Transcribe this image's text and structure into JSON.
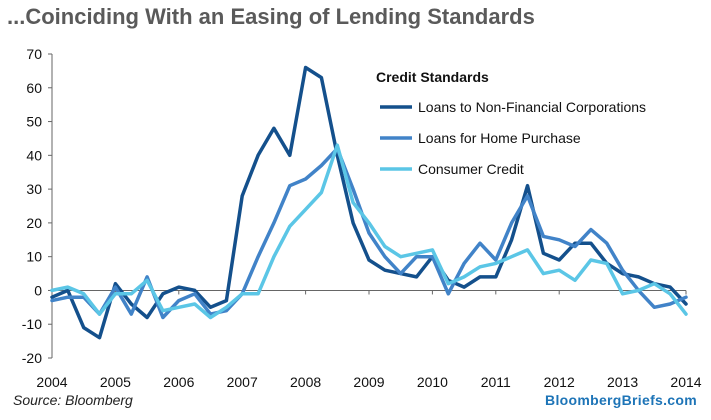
{
  "title": "...Coinciding With an Easing of Lending Standards",
  "source": "Source: Bloomberg",
  "brand": "BloombergBriefs.com",
  "chart_data": {
    "type": "line",
    "title": "...Coinciding With an Easing of Lending Standards",
    "legend_title": "Credit Standards",
    "legend_position": "top-right",
    "grid": false,
    "xlim": [
      2004,
      2014
    ],
    "ylim": [
      -20,
      70
    ],
    "x_ticks": [
      2004,
      2005,
      2006,
      2007,
      2008,
      2009,
      2010,
      2011,
      2012,
      2013,
      2014
    ],
    "y_ticks": [
      -20,
      -10,
      0,
      10,
      20,
      30,
      40,
      50,
      60,
      70
    ],
    "x": [
      2004.0,
      2004.25,
      2004.5,
      2004.75,
      2005.0,
      2005.25,
      2005.5,
      2005.75,
      2006.0,
      2006.25,
      2006.5,
      2006.75,
      2007.0,
      2007.25,
      2007.5,
      2007.75,
      2008.0,
      2008.25,
      2008.5,
      2008.75,
      2009.0,
      2009.25,
      2009.5,
      2009.75,
      2010.0,
      2010.25,
      2010.5,
      2010.75,
      2011.0,
      2011.25,
      2011.5,
      2011.75,
      2012.0,
      2012.25,
      2012.5,
      2012.75,
      2013.0,
      2013.25,
      2013.5,
      2013.75,
      2014.0
    ],
    "series": [
      {
        "name": "Loans to Non-Financial Corporations",
        "color": "#14508c",
        "values": [
          -2,
          0,
          -11,
          -14,
          2,
          -4,
          -8,
          -1,
          1,
          0,
          -5,
          -3,
          28,
          40,
          48,
          40,
          66,
          63,
          40,
          20,
          9,
          6,
          5,
          4,
          10,
          3,
          1,
          4,
          4,
          15,
          31,
          11,
          9,
          14,
          14,
          8,
          5,
          4,
          2,
          1,
          -4
        ]
      },
      {
        "name": "Loans for Home Purchase",
        "color": "#4183c8",
        "values": [
          -3,
          -2,
          -2,
          -7,
          1,
          -7,
          4,
          -8,
          -3,
          -1,
          -7,
          -6,
          -1,
          10,
          20,
          31,
          33,
          37,
          42,
          30,
          17,
          10,
          5,
          10,
          10,
          -1,
          8,
          14,
          9,
          20,
          28,
          16,
          15,
          13,
          18,
          14,
          6,
          0,
          -5,
          -4,
          -2
        ]
      },
      {
        "name": "Consumer Credit",
        "color": "#5bc6e6",
        "values": [
          0,
          1,
          -1,
          -7,
          -1,
          -1,
          3,
          -6,
          -5,
          -4,
          -8,
          -5,
          -1,
          -1,
          10,
          19,
          24,
          29,
          43,
          26,
          20,
          13,
          10,
          11,
          12,
          2,
          4,
          7,
          8,
          10,
          12,
          5,
          6,
          3,
          9,
          8,
          -1,
          0,
          2,
          -1,
          -7
        ]
      }
    ]
  }
}
